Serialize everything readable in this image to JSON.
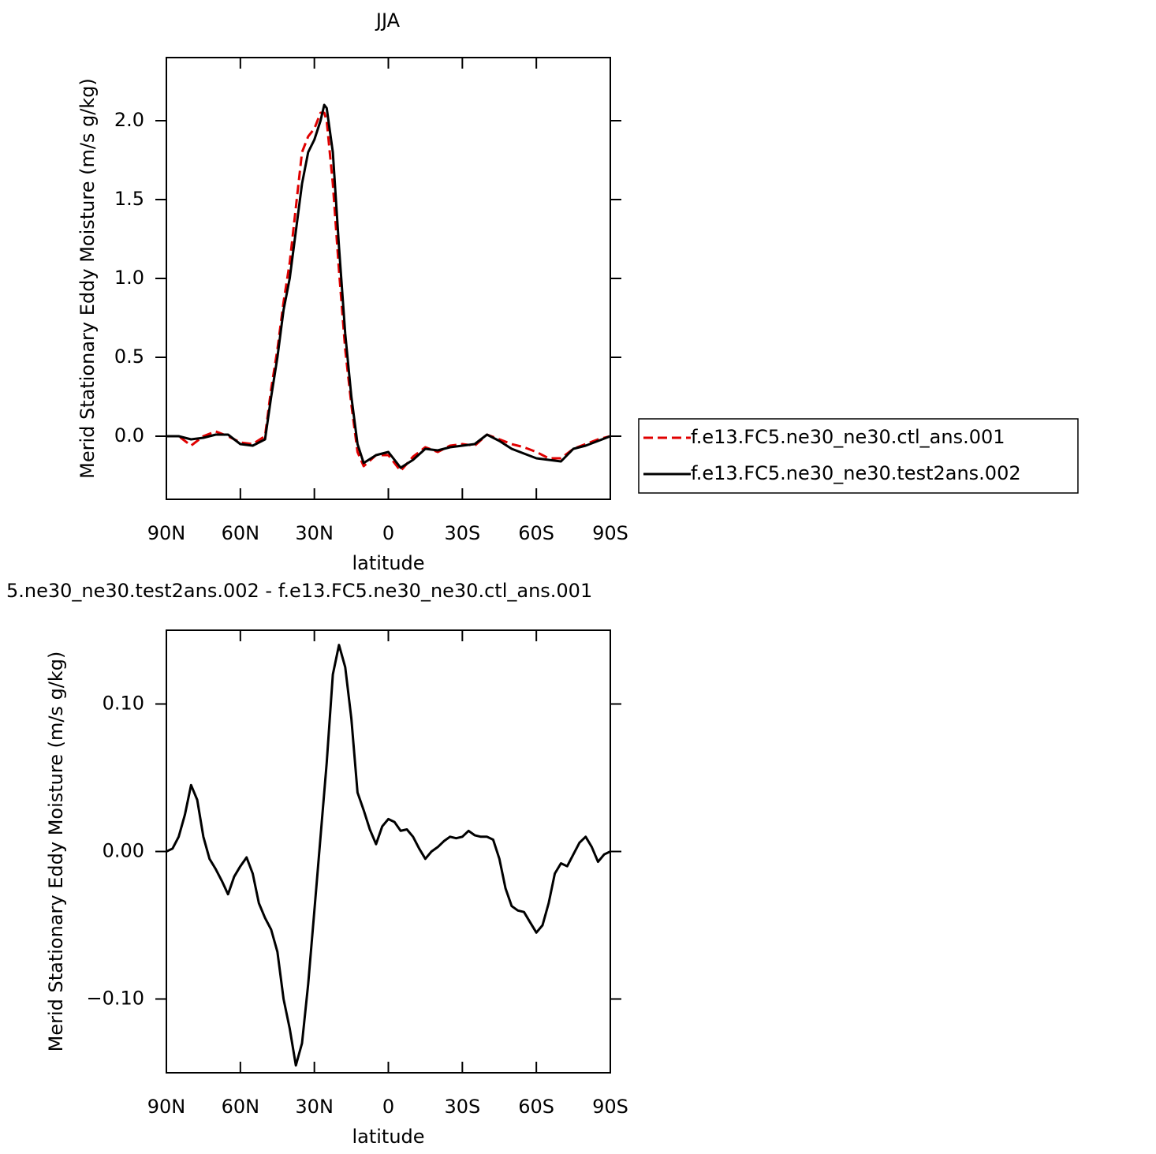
{
  "chart_data": [
    {
      "type": "line",
      "title": "JJA",
      "xlabel": "latitude",
      "ylabel": "Merid Stationary Eddy Moisture (m/s g/kg)",
      "x": [
        90,
        85,
        80,
        75,
        70,
        65,
        60,
        55,
        50,
        47.5,
        45,
        42.5,
        40,
        37.5,
        35,
        32.5,
        30,
        27.5,
        26,
        25,
        22.5,
        20,
        17.5,
        15,
        12.5,
        10,
        5,
        0,
        -5,
        -10,
        -15,
        -20,
        -25,
        -30,
        -35,
        -40,
        -45,
        -50,
        -55,
        -60,
        -65,
        -70,
        -75,
        -80,
        -85,
        -90
      ],
      "series": [
        {
          "name": "f.e13.FC5.ne30_ne30.ctl_ans.001",
          "color": "#e00000",
          "dash": true,
          "values": [
            0,
            0,
            -0.06,
            0.0,
            0.03,
            0.0,
            -0.04,
            -0.05,
            0.0,
            0.3,
            0.55,
            0.85,
            1.1,
            1.45,
            1.8,
            1.9,
            1.95,
            2.05,
            2.05,
            2.0,
            1.6,
            1.05,
            0.55,
            0.2,
            -0.1,
            -0.19,
            -0.12,
            -0.12,
            -0.22,
            -0.13,
            -0.07,
            -0.1,
            -0.06,
            -0.05,
            -0.06,
            0.01,
            -0.02,
            -0.05,
            -0.07,
            -0.1,
            -0.14,
            -0.14,
            -0.08,
            -0.05,
            -0.02,
            0.0
          ]
        },
        {
          "name": "f.e13.FC5.ne30_ne30.test2ans.002",
          "color": "#000000",
          "dash": false,
          "values": [
            0,
            0,
            -0.02,
            -0.01,
            0.01,
            0.01,
            -0.05,
            -0.06,
            -0.02,
            0.25,
            0.5,
            0.8,
            1.0,
            1.3,
            1.6,
            1.8,
            1.88,
            2.0,
            2.1,
            2.08,
            1.8,
            1.2,
            0.65,
            0.25,
            -0.05,
            -0.17,
            -0.12,
            -0.1,
            -0.2,
            -0.15,
            -0.08,
            -0.09,
            -0.07,
            -0.06,
            -0.05,
            0.01,
            -0.03,
            -0.08,
            -0.11,
            -0.14,
            -0.15,
            -0.16,
            -0.08,
            -0.06,
            -0.03,
            0.0
          ]
        }
      ],
      "xlim": [
        90,
        -90
      ],
      "xticks": [
        {
          "value": 90,
          "label": "90N"
        },
        {
          "value": 60,
          "label": "60N"
        },
        {
          "value": 30,
          "label": "30N"
        },
        0,
        {
          "value": -30,
          "label": "30S"
        },
        {
          "value": -60,
          "label": "60S"
        },
        {
          "value": -90,
          "label": "90S"
        }
      ],
      "ylim": [
        -0.4,
        2.4
      ],
      "yticks": [
        {
          "value": 0,
          "label": "0.0"
        },
        0.5,
        {
          "value": 1,
          "label": "1.0"
        },
        1.5,
        {
          "value": 2,
          "label": "2.0"
        }
      ],
      "legend": "right"
    },
    {
      "type": "line",
      "title": "5.ne30_ne30.test2ans.002 - f.e13.FC5.ne30_ne30.ctl_ans.001",
      "xlabel": "latitude",
      "ylabel": "Merid Stationary Eddy Moisture (m/s g/kg)",
      "x": [
        90,
        87.5,
        85,
        82.5,
        80,
        77.5,
        75,
        72.5,
        70,
        67.5,
        65,
        62.5,
        60,
        57.5,
        55,
        52.5,
        50,
        47.5,
        45,
        42.5,
        40,
        37.5,
        35,
        32.5,
        30,
        27.5,
        25,
        22.5,
        20,
        17.5,
        15,
        12.5,
        10,
        7.5,
        5,
        2.5,
        0,
        -2.5,
        -5,
        -7.5,
        -10,
        -12.5,
        -15,
        -17.5,
        -20,
        -22.5,
        -25,
        -27.5,
        -30,
        -32.5,
        -35,
        -37.5,
        -40,
        -42.5,
        -45,
        -47.5,
        -50,
        -52.5,
        -55,
        -57.5,
        -60,
        -62.5,
        -65,
        -67.5,
        -70,
        -72.5,
        -75,
        -77.5,
        -80,
        -82.5,
        -85,
        -87.5,
        -90
      ],
      "series": [
        {
          "color": "#000000",
          "dash": false,
          "values": [
            0.0,
            0.002,
            0.01,
            0.025,
            0.045,
            0.035,
            0.01,
            -0.005,
            -0.012,
            -0.02,
            -0.029,
            -0.017,
            -0.01,
            -0.004,
            -0.015,
            -0.035,
            -0.045,
            -0.053,
            -0.068,
            -0.1,
            -0.12,
            -0.145,
            -0.13,
            -0.09,
            -0.04,
            0.01,
            0.06,
            0.12,
            0.14,
            0.125,
            0.09,
            0.04,
            0.028,
            0.015,
            0.005,
            0.017,
            0.022,
            0.02,
            0.014,
            0.015,
            0.01,
            0.002,
            -0.005,
            0.0,
            0.003,
            0.007,
            0.01,
            0.009,
            0.01,
            0.014,
            0.011,
            0.01,
            0.01,
            0.008,
            -0.005,
            -0.025,
            -0.037,
            -0.04,
            -0.041,
            -0.048,
            -0.055,
            -0.05,
            -0.035,
            -0.015,
            -0.008,
            -0.01,
            -0.002,
            0.006,
            0.01,
            0.003,
            -0.007,
            -0.002,
            0.0
          ]
        }
      ],
      "xlim": [
        90,
        -90
      ],
      "xticks": [
        {
          "value": 90,
          "label": "90N"
        },
        {
          "value": 60,
          "label": "60N"
        },
        {
          "value": 30,
          "label": "30N"
        },
        0,
        {
          "value": -30,
          "label": "30S"
        },
        {
          "value": -60,
          "label": "60S"
        },
        {
          "value": -90,
          "label": "90S"
        }
      ],
      "ylim": [
        -0.15,
        0.15
      ],
      "yticks": [
        {
          "value": -0.1,
          "label": "−0.10"
        },
        {
          "value": 0,
          "label": "0.00"
        },
        {
          "value": 0.1,
          "label": "0.10"
        }
      ]
    }
  ]
}
